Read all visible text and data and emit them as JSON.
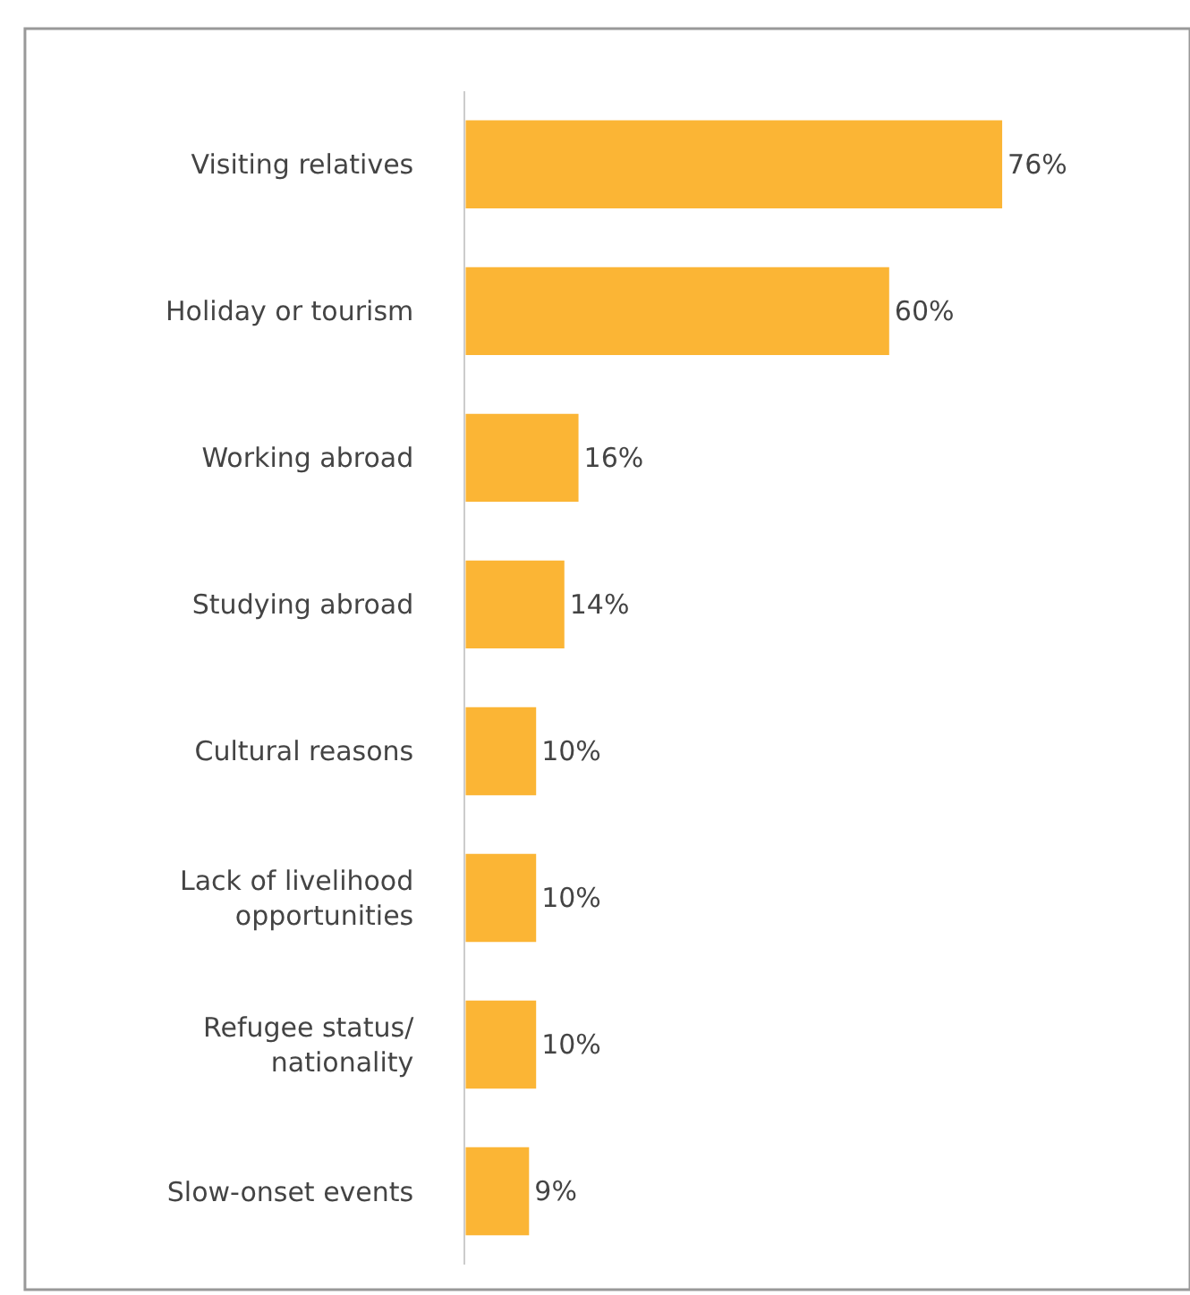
{
  "chart_data": {
    "type": "bar",
    "orientation": "horizontal",
    "categories": [
      "Visiting relatives",
      "Holiday or tourism",
      "Working abroad",
      "Studying abroad",
      "Cultural reasons",
      "Lack of livelihood\nopportunities",
      "Refugee status/\nnationality",
      "Slow-onset events"
    ],
    "values": [
      76,
      60,
      16,
      14,
      10,
      10,
      10,
      9
    ],
    "color": "#fbb535",
    "value_labels": [
      "76%",
      "60%",
      "16%",
      "14%",
      "10%",
      "10%",
      "10%",
      "9%"
    ]
  }
}
